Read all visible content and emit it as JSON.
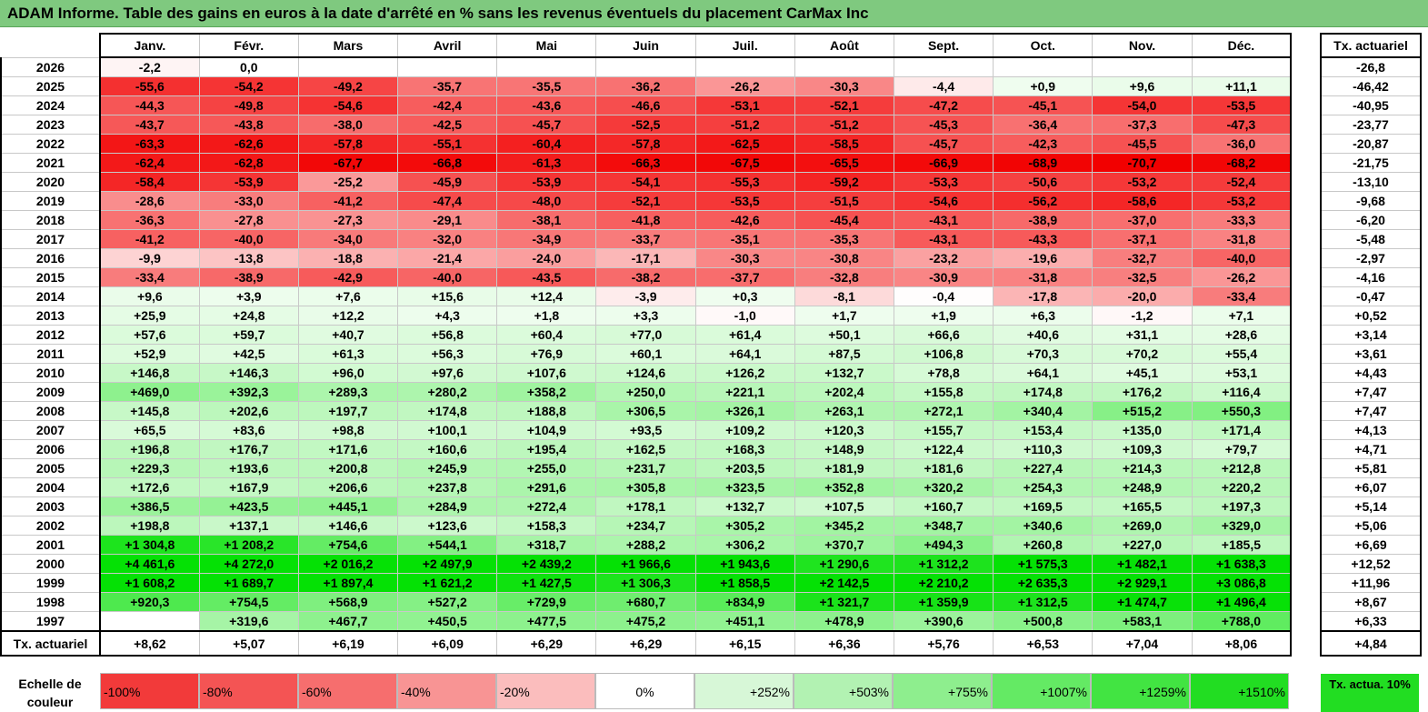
{
  "title": "ADAM Informe. Table des gains en euros à la date d'arrêté en % sans les revenus éventuels du placement CarMax Inc",
  "chart_data": {
    "type": "heatmap",
    "title": "ADAM Informe. Table des gains en euros à la date d'arrêté en % sans les revenus éventuels du placement CarMax Inc",
    "columns": [
      "Janv.",
      "Févr.",
      "Mars",
      "Avril",
      "Mai",
      "Juin",
      "Juil.",
      "Août",
      "Sept.",
      "Oct.",
      "Nov.",
      "Déc."
    ],
    "side_header": "Tx. actuariel",
    "rows": [
      {
        "year": "2026",
        "values": [
          "-2,2",
          "0,0",
          "",
          "",
          "",
          "",
          "",
          "",
          "",
          "",
          "",
          ""
        ],
        "tx": "-26,8"
      },
      {
        "year": "2025",
        "values": [
          "-55,6",
          "-54,2",
          "-49,2",
          "-35,7",
          "-35,5",
          "-36,2",
          "-26,2",
          "-30,3",
          "-4,4",
          "+0,9",
          "+9,6",
          "+11,1"
        ],
        "tx": "-46,42"
      },
      {
        "year": "2024",
        "values": [
          "-44,3",
          "-49,8",
          "-54,6",
          "-42,4",
          "-43,6",
          "-46,6",
          "-53,1",
          "-52,1",
          "-47,2",
          "-45,1",
          "-54,0",
          "-53,5"
        ],
        "tx": "-40,95"
      },
      {
        "year": "2023",
        "values": [
          "-43,7",
          "-43,8",
          "-38,0",
          "-42,5",
          "-45,7",
          "-52,5",
          "-51,2",
          "-51,2",
          "-45,3",
          "-36,4",
          "-37,3",
          "-47,3"
        ],
        "tx": "-23,77"
      },
      {
        "year": "2022",
        "values": [
          "-63,3",
          "-62,6",
          "-57,8",
          "-55,1",
          "-60,4",
          "-57,8",
          "-62,5",
          "-58,5",
          "-45,7",
          "-42,3",
          "-45,5",
          "-36,0"
        ],
        "tx": "-20,87"
      },
      {
        "year": "2021",
        "values": [
          "-62,4",
          "-62,8",
          "-67,7",
          "-66,8",
          "-61,3",
          "-66,3",
          "-67,5",
          "-65,5",
          "-66,9",
          "-68,9",
          "-70,7",
          "-68,2"
        ],
        "tx": "-21,75"
      },
      {
        "year": "2020",
        "values": [
          "-58,4",
          "-53,9",
          "-25,2",
          "-45,9",
          "-53,9",
          "-54,1",
          "-55,3",
          "-59,2",
          "-53,3",
          "-50,6",
          "-53,2",
          "-52,4"
        ],
        "tx": "-13,10"
      },
      {
        "year": "2019",
        "values": [
          "-28,6",
          "-33,0",
          "-41,2",
          "-47,4",
          "-48,0",
          "-52,1",
          "-53,5",
          "-51,5",
          "-54,6",
          "-56,2",
          "-58,6",
          "-53,2"
        ],
        "tx": "-9,68"
      },
      {
        "year": "2018",
        "values": [
          "-36,3",
          "-27,8",
          "-27,3",
          "-29,1",
          "-38,1",
          "-41,8",
          "-42,6",
          "-45,4",
          "-43,1",
          "-38,9",
          "-37,0",
          "-33,3"
        ],
        "tx": "-6,20"
      },
      {
        "year": "2017",
        "values": [
          "-41,2",
          "-40,0",
          "-34,0",
          "-32,0",
          "-34,9",
          "-33,7",
          "-35,1",
          "-35,3",
          "-43,1",
          "-43,3",
          "-37,1",
          "-31,8"
        ],
        "tx": "-5,48"
      },
      {
        "year": "2016",
        "values": [
          "-9,9",
          "-13,8",
          "-18,8",
          "-21,4",
          "-24,0",
          "-17,1",
          "-30,3",
          "-30,8",
          "-23,2",
          "-19,6",
          "-32,7",
          "-40,0"
        ],
        "tx": "-2,97"
      },
      {
        "year": "2015",
        "values": [
          "-33,4",
          "-38,9",
          "-42,9",
          "-40,0",
          "-43,5",
          "-38,2",
          "-37,7",
          "-32,8",
          "-30,9",
          "-31,8",
          "-32,5",
          "-26,2"
        ],
        "tx": "-4,16"
      },
      {
        "year": "2014",
        "values": [
          "+9,6",
          "+3,9",
          "+7,6",
          "+15,6",
          "+12,4",
          "-3,9",
          "+0,3",
          "-8,1",
          "-0,4",
          "-17,8",
          "-20,0",
          "-33,4"
        ],
        "tx": "-0,47"
      },
      {
        "year": "2013",
        "values": [
          "+25,9",
          "+24,8",
          "+12,2",
          "+4,3",
          "+1,8",
          "+3,3",
          "-1,0",
          "+1,7",
          "+1,9",
          "+6,3",
          "-1,2",
          "+7,1"
        ],
        "tx": "+0,52"
      },
      {
        "year": "2012",
        "values": [
          "+57,6",
          "+59,7",
          "+40,7",
          "+56,8",
          "+60,4",
          "+77,0",
          "+61,4",
          "+50,1",
          "+66,6",
          "+40,6",
          "+31,1",
          "+28,6"
        ],
        "tx": "+3,14"
      },
      {
        "year": "2011",
        "values": [
          "+52,9",
          "+42,5",
          "+61,3",
          "+56,3",
          "+76,9",
          "+60,1",
          "+64,1",
          "+87,5",
          "+106,8",
          "+70,3",
          "+70,2",
          "+55,4"
        ],
        "tx": "+3,61"
      },
      {
        "year": "2010",
        "values": [
          "+146,8",
          "+146,3",
          "+96,0",
          "+97,6",
          "+107,6",
          "+124,6",
          "+126,2",
          "+132,7",
          "+78,8",
          "+64,1",
          "+45,1",
          "+53,1"
        ],
        "tx": "+4,43"
      },
      {
        "year": "2009",
        "values": [
          "+469,0",
          "+392,3",
          "+289,3",
          "+280,2",
          "+358,2",
          "+250,0",
          "+221,1",
          "+202,4",
          "+155,8",
          "+174,8",
          "+176,2",
          "+116,4"
        ],
        "tx": "+7,47"
      },
      {
        "year": "2008",
        "values": [
          "+145,8",
          "+202,6",
          "+197,7",
          "+174,8",
          "+188,8",
          "+306,5",
          "+326,1",
          "+263,1",
          "+272,1",
          "+340,4",
          "+515,2",
          "+550,3"
        ],
        "tx": "+7,47"
      },
      {
        "year": "2007",
        "values": [
          "+65,5",
          "+83,6",
          "+98,8",
          "+100,1",
          "+104,9",
          "+93,5",
          "+109,2",
          "+120,3",
          "+155,7",
          "+153,4",
          "+135,0",
          "+171,4"
        ],
        "tx": "+4,13"
      },
      {
        "year": "2006",
        "values": [
          "+196,8",
          "+176,7",
          "+171,6",
          "+160,6",
          "+195,4",
          "+162,5",
          "+168,3",
          "+148,9",
          "+122,4",
          "+110,3",
          "+109,3",
          "+79,7"
        ],
        "tx": "+4,71"
      },
      {
        "year": "2005",
        "values": [
          "+229,3",
          "+193,6",
          "+200,8",
          "+245,9",
          "+255,0",
          "+231,7",
          "+203,5",
          "+181,9",
          "+181,6",
          "+227,4",
          "+214,3",
          "+212,8"
        ],
        "tx": "+5,81"
      },
      {
        "year": "2004",
        "values": [
          "+172,6",
          "+167,9",
          "+206,6",
          "+237,8",
          "+291,6",
          "+305,8",
          "+323,5",
          "+352,8",
          "+320,2",
          "+254,3",
          "+248,9",
          "+220,2"
        ],
        "tx": "+6,07"
      },
      {
        "year": "2003",
        "values": [
          "+386,5",
          "+423,5",
          "+445,1",
          "+284,9",
          "+272,4",
          "+178,1",
          "+132,7",
          "+107,5",
          "+160,7",
          "+169,5",
          "+165,5",
          "+197,3"
        ],
        "tx": "+5,14"
      },
      {
        "year": "2002",
        "values": [
          "+198,8",
          "+137,1",
          "+146,6",
          "+123,6",
          "+158,3",
          "+234,7",
          "+305,2",
          "+345,2",
          "+348,7",
          "+340,6",
          "+269,0",
          "+329,0"
        ],
        "tx": "+5,06"
      },
      {
        "year": "2001",
        "values": [
          "+1 304,8",
          "+1 208,2",
          "+754,6",
          "+544,1",
          "+318,7",
          "+288,2",
          "+306,2",
          "+370,7",
          "+494,3",
          "+260,8",
          "+227,0",
          "+185,5"
        ],
        "tx": "+6,69"
      },
      {
        "year": "2000",
        "values": [
          "+4 461,6",
          "+4 272,0",
          "+2 016,2",
          "+2 497,9",
          "+2 439,2",
          "+1 966,6",
          "+1 943,6",
          "+1 290,6",
          "+1 312,2",
          "+1 575,3",
          "+1 482,1",
          "+1 638,3"
        ],
        "tx": "+12,52"
      },
      {
        "year": "1999",
        "values": [
          "+1 608,2",
          "+1 689,7",
          "+1 897,4",
          "+1 621,2",
          "+1 427,5",
          "+1 306,3",
          "+1 858,5",
          "+2 142,5",
          "+2 210,2",
          "+2 635,3",
          "+2 929,1",
          "+3 086,8"
        ],
        "tx": "+11,96"
      },
      {
        "year": "1998",
        "values": [
          "+920,3",
          "+754,5",
          "+568,9",
          "+527,2",
          "+729,9",
          "+680,7",
          "+834,9",
          "+1 321,7",
          "+1 359,9",
          "+1 312,5",
          "+1 474,7",
          "+1 496,4"
        ],
        "tx": "+8,67"
      },
      {
        "year": "1997",
        "values": [
          "",
          "+319,6",
          "+467,7",
          "+450,5",
          "+477,5",
          "+475,2",
          "+451,1",
          "+478,9",
          "+390,6",
          "+500,8",
          "+583,1",
          "+788,0"
        ],
        "tx": "+6,33"
      }
    ],
    "tx_row": {
      "label": "Tx. actuariel",
      "values": [
        "+8,62",
        "+5,07",
        "+6,19",
        "+6,09",
        "+6,29",
        "+6,29",
        "+6,15",
        "+6,36",
        "+5,76",
        "+6,53",
        "+7,04",
        "+8,06"
      ],
      "total": "+4,84"
    },
    "scale": {
      "label": "Echelle de couleur",
      "steps": [
        {
          "label": "-100%",
          "color": "#f23a3a",
          "kind": "neg"
        },
        {
          "label": "-80%",
          "color": "#f45454",
          "kind": "neg"
        },
        {
          "label": "-60%",
          "color": "#f66e6e",
          "kind": "neg"
        },
        {
          "label": "-40%",
          "color": "#f89494",
          "kind": "neg"
        },
        {
          "label": "-20%",
          "color": "#fbbdbd",
          "kind": "neg"
        },
        {
          "label": "0%",
          "color": "#ffffff",
          "kind": "zero"
        },
        {
          "label": "+252%",
          "color": "#d7f7d7",
          "kind": "pos"
        },
        {
          "label": "+503%",
          "color": "#b2f2b2",
          "kind": "pos"
        },
        {
          "label": "+755%",
          "color": "#8eee8e",
          "kind": "pos"
        },
        {
          "label": "+1007%",
          "color": "#64ea64",
          "kind": "pos"
        },
        {
          "label": "+1259%",
          "color": "#42e442",
          "kind": "pos"
        },
        {
          "label": "+1510%",
          "color": "#22dd22",
          "kind": "pos"
        }
      ],
      "reference": "Tx. actua. 10%",
      "reference_color": "#22dd22"
    },
    "colors": {
      "negative_max": "#f20000",
      "positive_max": "#00e000",
      "header_bar": "#7fc97f"
    }
  }
}
